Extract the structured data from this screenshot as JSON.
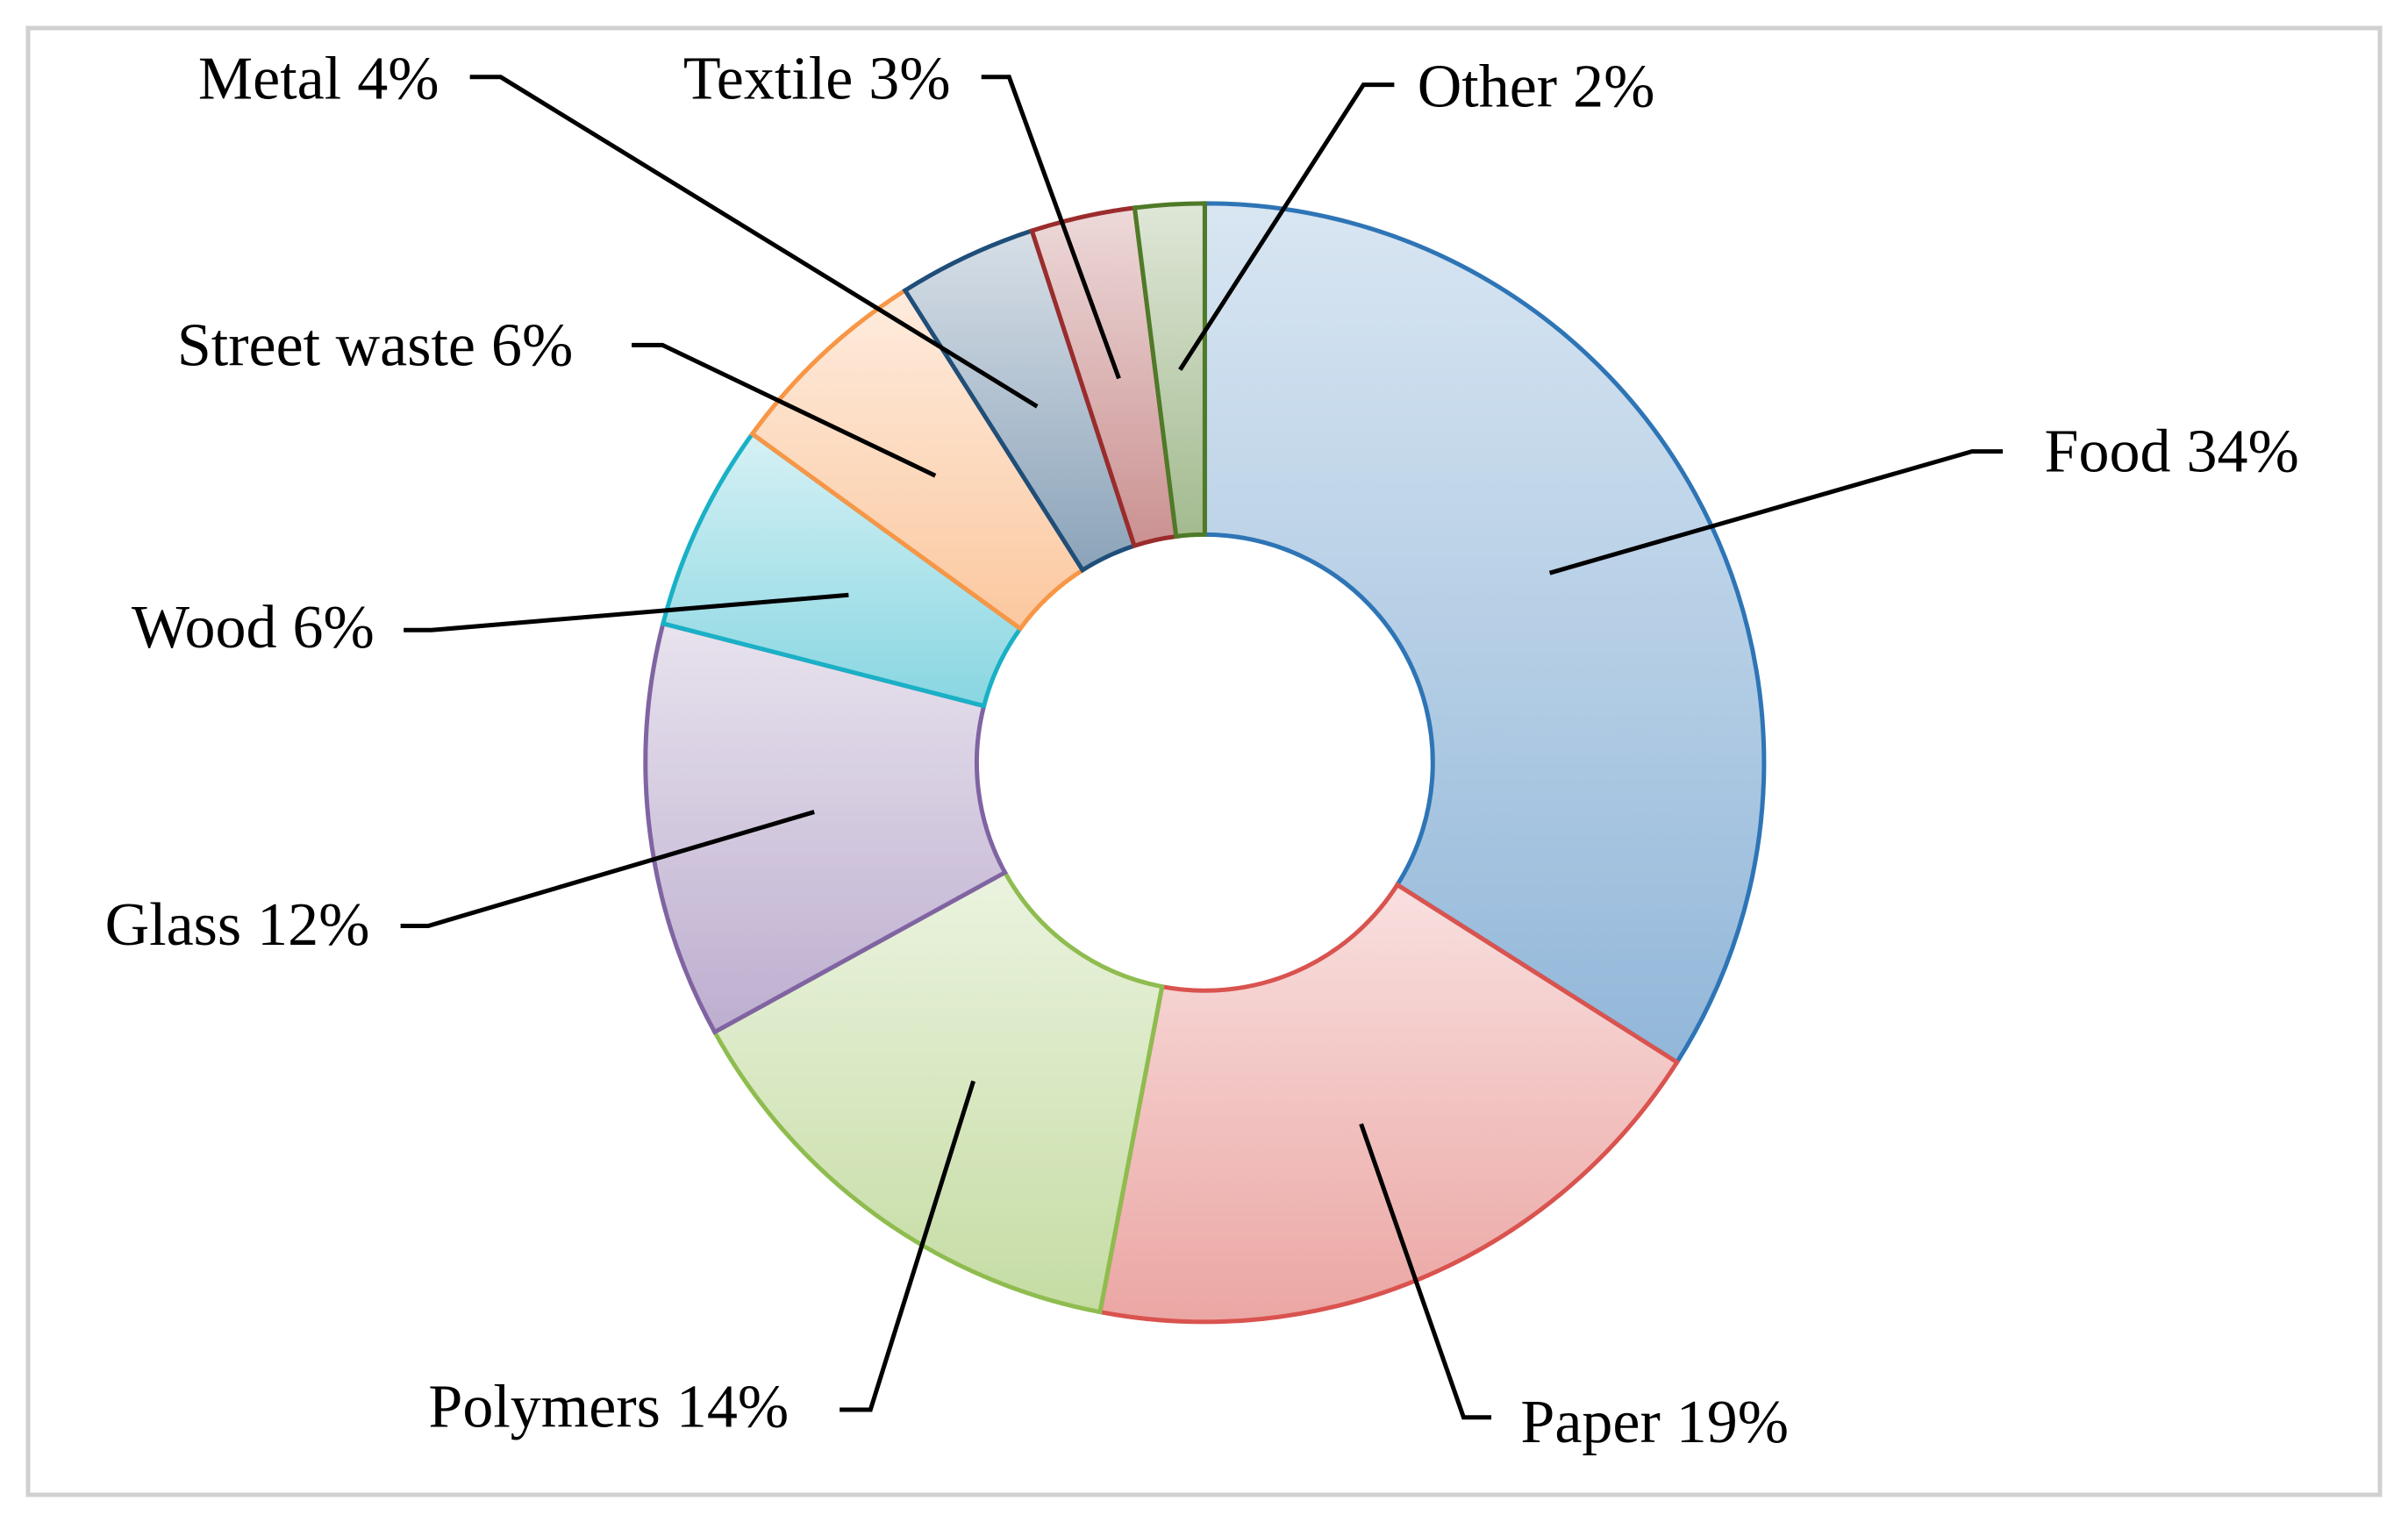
{
  "chart_data": {
    "type": "donut",
    "categories": [
      "Food",
      "Paper",
      "Polymers",
      "Glass",
      "Wood",
      "Street waste",
      "Metal",
      "Textile",
      "Other"
    ],
    "values": [
      34,
      19,
      14,
      12,
      6,
      6,
      4,
      3,
      2
    ],
    "value_labels": [
      "34%",
      "19%",
      "14%",
      "12%",
      "6%",
      "6%",
      "4%",
      "3%",
      "2%"
    ],
    "colors": [
      "#2e75b6",
      "#d9534f",
      "#8fbc4f",
      "#8064a2",
      "#1ab0c6",
      "#f79646",
      "#1f4e79",
      "#9b2c2c",
      "#4f7a28"
    ]
  }
}
